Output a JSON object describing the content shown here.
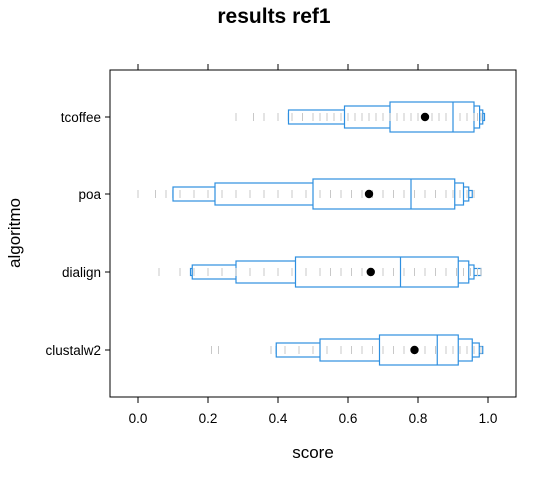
{
  "chart_data": {
    "type": "letter-value-boxplot",
    "title": "results ref1",
    "xlabel": "score",
    "ylabel": "algoritmo",
    "xlim": [
      -0.08,
      1.08
    ],
    "x_ticks": [
      0.0,
      0.2,
      0.4,
      0.6,
      0.8,
      1.0
    ],
    "x_tick_labels": [
      "0.0",
      "0.2",
      "0.4",
      "0.6",
      "0.8",
      "1.0"
    ],
    "categories": [
      "tcoffee",
      "poa",
      "dialign",
      "clustalw2"
    ],
    "box_color": "#2e8fe0",
    "rug_color": "#c8c8c8",
    "mean_color": "#000000",
    "groups": [
      {
        "name": "tcoffee",
        "median": 0.9,
        "mean": 0.82,
        "letter_values": [
          [
            0.72,
            0.96
          ],
          [
            0.59,
            0.976
          ],
          [
            0.43,
            0.985
          ],
          [
            0.43,
            0.99
          ]
        ],
        "rug": [
          0.28,
          0.33,
          0.36,
          0.4,
          0.44,
          0.47,
          0.5,
          0.52,
          0.54,
          0.56,
          0.58,
          0.6,
          0.62,
          0.64,
          0.66,
          0.68,
          0.7,
          0.72,
          0.74,
          0.76,
          0.78,
          0.8,
          0.82,
          0.84,
          0.86,
          0.88,
          0.9,
          0.92,
          0.94,
          0.96,
          0.97,
          0.98
        ]
      },
      {
        "name": "poa",
        "median": 0.78,
        "mean": 0.66,
        "letter_values": [
          [
            0.5,
            0.905
          ],
          [
            0.22,
            0.93
          ],
          [
            0.1,
            0.945
          ],
          [
            0.1,
            0.955
          ]
        ],
        "rug": [
          0.0,
          0.05,
          0.08,
          0.12,
          0.16,
          0.2,
          0.24,
          0.28,
          0.32,
          0.36,
          0.4,
          0.44,
          0.48,
          0.52,
          0.55,
          0.58,
          0.61,
          0.64,
          0.67,
          0.7,
          0.73,
          0.76,
          0.79,
          0.82,
          0.85,
          0.88,
          0.9,
          0.92,
          0.94,
          0.96
        ]
      },
      {
        "name": "dialign",
        "median": 0.75,
        "mean": 0.665,
        "letter_values": [
          [
            0.45,
            0.915
          ],
          [
            0.28,
            0.945
          ],
          [
            0.155,
            0.96
          ],
          [
            0.15,
            0.98
          ]
        ],
        "rug": [
          0.06,
          0.12,
          0.16,
          0.2,
          0.24,
          0.28,
          0.32,
          0.36,
          0.4,
          0.44,
          0.48,
          0.52,
          0.55,
          0.58,
          0.61,
          0.64,
          0.67,
          0.7,
          0.73,
          0.76,
          0.79,
          0.82,
          0.85,
          0.88,
          0.91,
          0.93,
          0.95,
          0.97,
          0.98
        ]
      },
      {
        "name": "clustalw2",
        "median": 0.855,
        "mean": 0.79,
        "letter_values": [
          [
            0.69,
            0.915
          ],
          [
            0.52,
            0.955
          ],
          [
            0.395,
            0.975
          ],
          [
            0.395,
            0.985
          ]
        ],
        "rug": [
          0.21,
          0.23,
          0.38,
          0.42,
          0.46,
          0.5,
          0.54,
          0.58,
          0.61,
          0.64,
          0.67,
          0.7,
          0.73,
          0.76,
          0.79,
          0.82,
          0.85,
          0.88,
          0.9,
          0.92,
          0.94,
          0.96,
          0.98
        ]
      }
    ]
  }
}
